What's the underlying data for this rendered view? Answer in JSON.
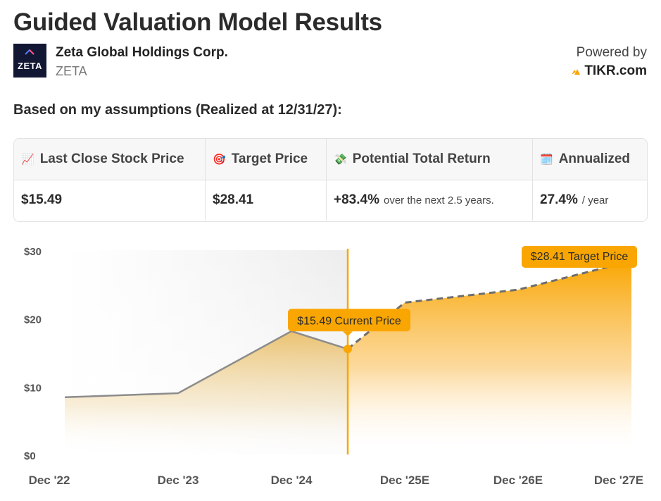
{
  "header": {
    "title": "Guided Valuation Model Results",
    "company_name": "Zeta Global Holdings Corp.",
    "ticker": "ZETA",
    "logo_text": "ZETA",
    "powered_by": "Powered by",
    "brand": "TIKR.com",
    "assumption_text": "Based on my assumptions (Realized at 12/31/27):"
  },
  "metrics": {
    "headers": [
      "Last Close Stock Price",
      "Target Price",
      "Potential Total Return",
      "Annualized"
    ],
    "icons": [
      "chart-increasing-icon",
      "target-icon",
      "money-icon",
      "calendar-icon"
    ],
    "values": [
      "$15.49",
      "$28.41",
      "+83.4%",
      "27.4%"
    ],
    "value_suffixes": [
      "",
      "",
      "over the next 2.5 years.",
      "/ year"
    ]
  },
  "chart_data": {
    "type": "area",
    "x": [
      "Dec '22",
      "Dec '23",
      "Dec '24",
      "Dec '25E",
      "Dec '26E",
      "Dec '27E"
    ],
    "yticks": [
      "$0",
      "$10",
      "$20",
      "$30"
    ],
    "ylim": [
      0,
      30
    ],
    "historical": [
      {
        "x": "Dec '22",
        "y": 8.4
      },
      {
        "x": "Dec '23",
        "y": 9.0
      },
      {
        "x": "Dec '24",
        "y": 18.1
      },
      {
        "x": "current",
        "y": 15.49
      }
    ],
    "projected": [
      {
        "x": "current",
        "y": 15.49
      },
      {
        "x": "Dec '25E",
        "y": 22.3
      },
      {
        "x": "Dec '26E",
        "y": 24.2
      },
      {
        "x": "Dec '27E",
        "y": 28.41
      }
    ],
    "current_label": "$15.49 Current Price",
    "target_label": "$28.41 Target Price",
    "accent_color": "#f9a602",
    "history_line_color": "#8c8c8c",
    "projection_line_color": "#6e6e6e"
  }
}
